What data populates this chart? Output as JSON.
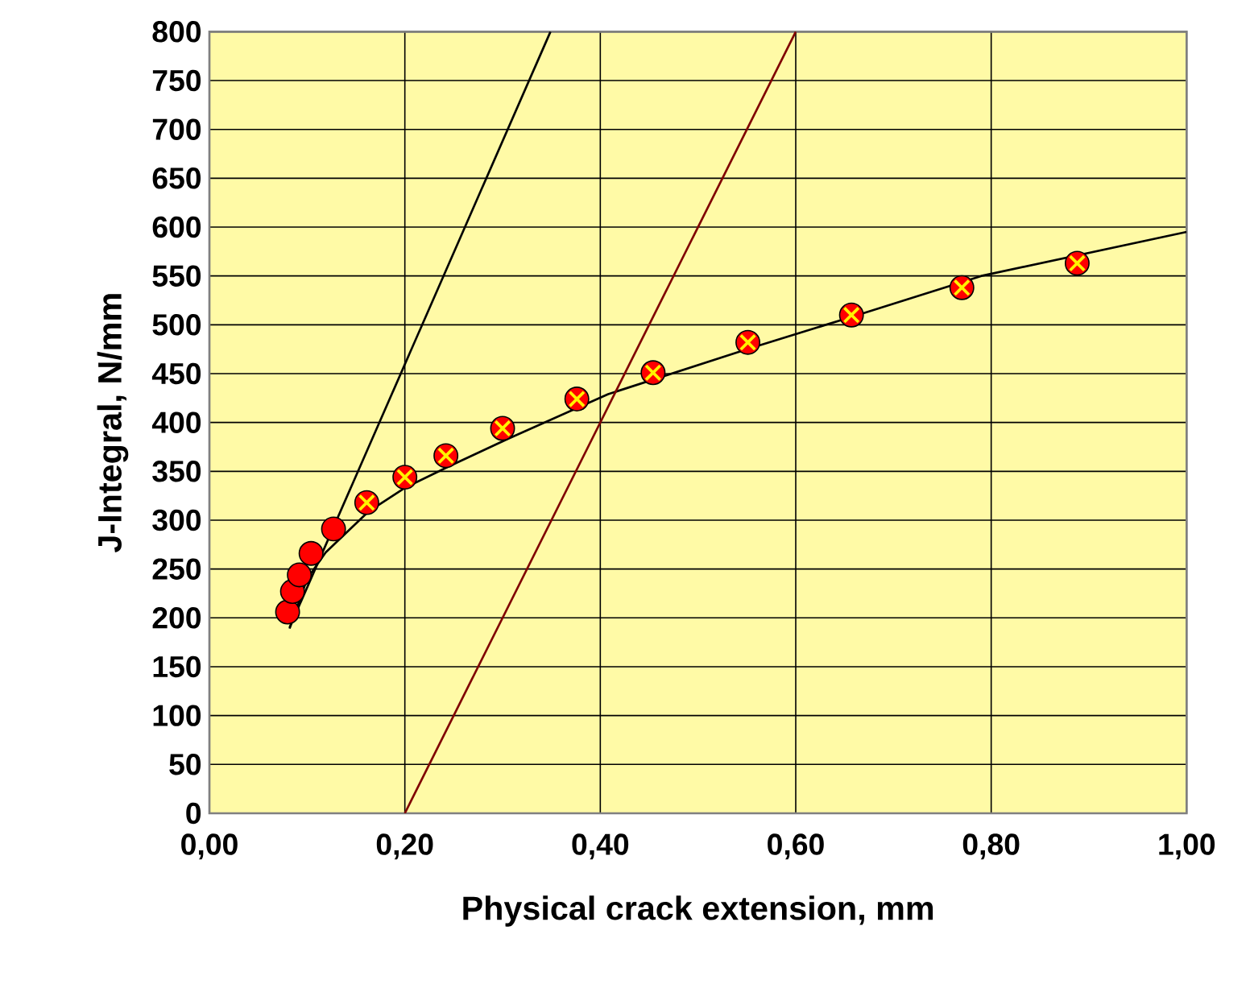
{
  "chart_data": {
    "type": "scatter",
    "xlabel": "Physical crack extension, mm",
    "ylabel": "J-Integral, N/mm",
    "xlim": [
      0,
      1
    ],
    "ylim": [
      0,
      800
    ],
    "xticks": [
      {
        "value": 0,
        "label": "0,00"
      },
      {
        "value": 0.2,
        "label": "0,20"
      },
      {
        "value": 0.4,
        "label": "0,40"
      },
      {
        "value": 0.6,
        "label": "0,60"
      },
      {
        "value": 0.8,
        "label": "0,80"
      },
      {
        "value": 1,
        "label": "1,00"
      }
    ],
    "yticks": [
      0,
      50,
      100,
      150,
      200,
      250,
      300,
      350,
      400,
      450,
      500,
      550,
      600,
      650,
      700,
      750,
      800
    ],
    "grid": true,
    "series": [
      {
        "color": "#ff0000",
        "marker": "circle",
        "x": [
          0.08,
          0.085,
          0.092,
          0.104,
          0.127
        ],
        "values": [
          206,
          227,
          244,
          266,
          291
        ]
      },
      {
        "color": "#ff0000",
        "marker": "circle",
        "x": [
          0.161,
          0.2,
          0.242,
          0.3,
          0.376,
          0.454,
          0.551,
          0.657,
          0.77,
          0.888
        ],
        "values": [
          318,
          344,
          366,
          394,
          424,
          451,
          482,
          510,
          538,
          563
        ]
      },
      {
        "type": "line",
        "color": "#000000",
        "marker": "none",
        "x": [
          0.082,
          0.1,
          0.119,
          0.163,
          0.2,
          0.245,
          0.305,
          0.408,
          0.55,
          0.66,
          0.79,
          1.0
        ],
        "values": [
          189,
          240,
          267,
          309,
          333,
          355,
          383,
          429,
          475,
          509,
          550,
          595
        ]
      },
      {
        "type": "line",
        "color": "#000000",
        "marker": "none",
        "x": [
          0.082,
          0.349
        ],
        "values": [
          190,
          800
        ]
      },
      {
        "type": "line",
        "color": "#800000",
        "marker": "none",
        "x": [
          0.2,
          0.6
        ],
        "values": [
          0,
          800
        ]
      }
    ]
  }
}
